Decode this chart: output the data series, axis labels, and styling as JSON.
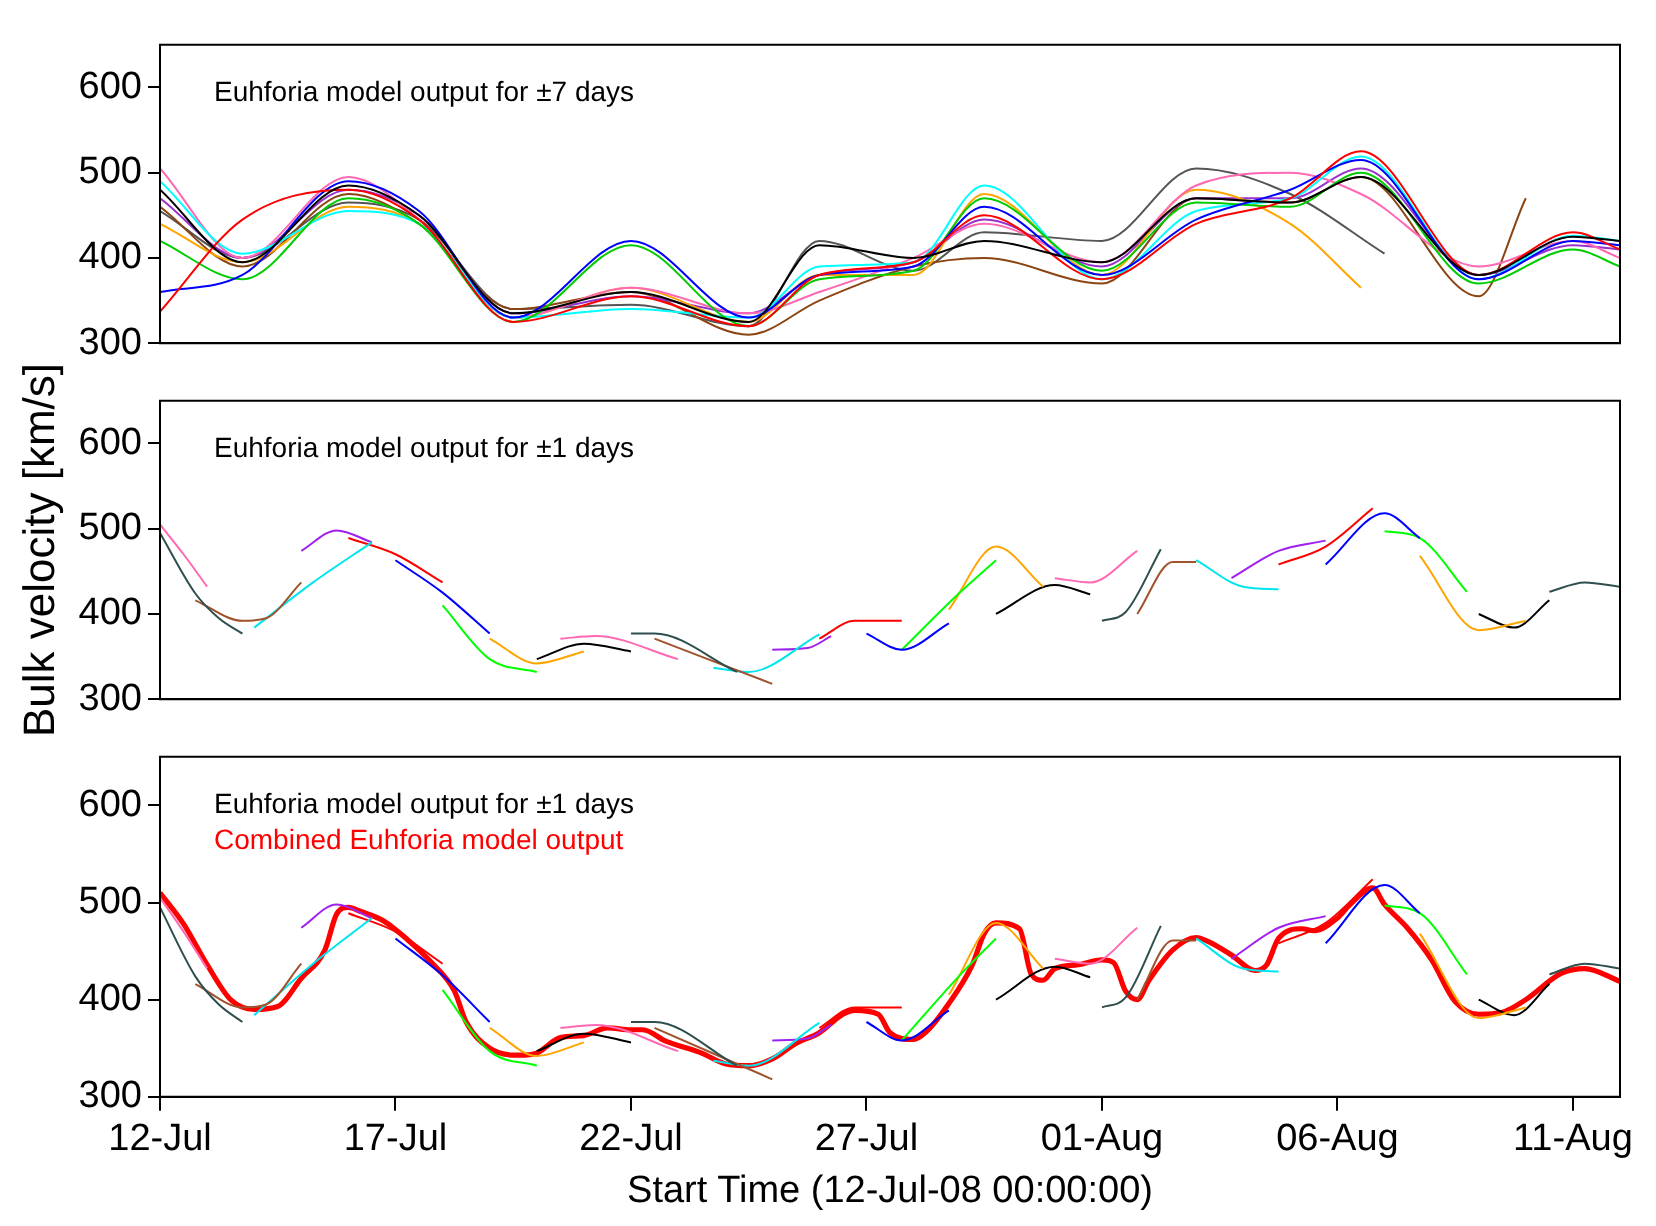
{
  "chart_data": [
    {
      "type": "line",
      "title": "Euhforia model output for ±7 days",
      "xlim": [
        "--07-12",
        "--08-12"
      ],
      "xticks": [
        {
          "value": "--07-12",
          "label": null
        },
        {
          "value": "--07-17",
          "label": null
        },
        {
          "value": "--07-22",
          "label": null
        },
        {
          "value": "--07-27",
          "label": null
        },
        {
          "value": "--08-01",
          "label": null
        },
        {
          "value": "--08-06",
          "label": null
        },
        {
          "value": "--08-11",
          "label": null
        }
      ],
      "ylim": [
        300,
        650
      ],
      "yticks": [
        300,
        400,
        500,
        600
      ],
      "tick_labels": "y",
      "x": [
        "--07-12",
        "--07-13T18:00",
        "--07-16",
        "--07-17T12:00",
        "--07-19T12:00",
        "--07-22",
        "--07-24T12:00",
        "--07-26",
        "--07-28",
        "--07-29T12:00",
        "--08-01",
        "--08-03",
        "--08-05",
        "--08-06T12:00",
        "--08-09",
        "--08-11",
        "--08-12"
      ],
      "series": [
        {
          "color": "#000000",
          "values": [
            480,
            395,
            485,
            450,
            335,
            360,
            325,
            415,
            400,
            420,
            395,
            470,
            465,
            495,
            380,
            425,
            420
          ]
        },
        {
          "color": "#ff0000",
          "values": [
            337,
            445,
            480,
            445,
            325,
            355,
            320,
            380,
            395,
            450,
            375,
            440,
            470,
            525,
            380,
            430,
            410
          ]
        },
        {
          "color": "#0000ff",
          "values": [
            360,
            380,
            490,
            455,
            330,
            420,
            330,
            380,
            390,
            460,
            380,
            445,
            480,
            515,
            375,
            420,
            415
          ]
        },
        {
          "color": "#00cc00",
          "values": [
            420,
            375,
            470,
            440,
            325,
            415,
            320,
            375,
            385,
            470,
            385,
            465,
            460,
            500,
            370,
            410,
            390
          ]
        },
        {
          "color": "#00ffff",
          "values": [
            490,
            405,
            455,
            440,
            330,
            340,
            330,
            390,
            395,
            485,
            375,
            455,
            470,
            519,
            375,
            426,
            420
          ]
        },
        {
          "color": "#ff69b4",
          "values": [
            505,
            400,
            495,
            445,
            330,
            365,
            335,
            360,
            400,
            440,
            395,
            485,
            500,
            475,
            390,
            420,
            400
          ]
        },
        {
          "color": "#ffa500",
          "values": [
            440,
            395,
            460,
            440,
            330,
            365,
            325,
            380,
            380,
            475,
            380,
            480,
            440,
            365,
            null,
            null,
            null
          ]
        },
        {
          "color": "#9932cc",
          "values": [
            470,
            400,
            480,
            450,
            335,
            355,
            335,
            380,
            395,
            445,
            390,
            470,
            470,
            505,
            380,
            415,
            410
          ]
        },
        {
          "color": "#8b4513",
          "x": [
            "--07-12",
            "--07-13T18:00",
            "--07-16",
            "--07-17T12:00",
            "--07-19T12:00",
            "--07-22",
            "--07-24T12:00",
            "--07-26",
            "--07-28",
            "--07-29T12:00",
            "--08-01",
            "--08-03",
            "--08-05",
            "--08-06T12:00",
            "--08-09",
            "--08-10"
          ],
          "values": [
            460,
            390,
            475,
            440,
            340,
            360,
            310,
            350,
            390,
            400,
            370,
            470,
            465,
            495,
            355,
            470
          ]
        },
        {
          "color": "#555555",
          "x": [
            "--07-12",
            "--07-13T18:00",
            "--07-16",
            "--07-17T12:00",
            "--07-19T12:00",
            "--07-22",
            "--07-24T12:00",
            "--07-26",
            "--07-28",
            "--07-29T12:00",
            "--08-01",
            "--08-03",
            "--08-05",
            "--08-07"
          ],
          "values": [
            455,
            400,
            465,
            445,
            340,
            345,
            320,
            420,
            385,
            430,
            420,
            505,
            475,
            405
          ]
        }
      ]
    },
    {
      "type": "line",
      "title": "Euhforia model output for ±1 days",
      "ylabel": "Bulk velocity [km/s]",
      "xlim": [
        "--07-12",
        "--08-12"
      ],
      "xticks": [
        {
          "value": "--07-12",
          "label": null
        },
        {
          "value": "--07-17",
          "label": null
        },
        {
          "value": "--07-22",
          "label": null
        },
        {
          "value": "--07-27",
          "label": null
        },
        {
          "value": "--08-01",
          "label": null
        },
        {
          "value": "--08-06",
          "label": null
        },
        {
          "value": "--08-11",
          "label": null
        }
      ],
      "ylim": [
        300,
        650
      ],
      "yticks": [
        300,
        400,
        500,
        600
      ],
      "tick_labels": "y",
      "series": [
        {
          "color": "#ff69b4",
          "x": [
            "--07-12",
            "--07-12T12:00",
            "--07-13"
          ],
          "values": [
            505,
            470,
            432
          ]
        },
        {
          "color": "#2f4f4f",
          "x": [
            "--07-12",
            "--07-12T18:00",
            "--07-13T06:00",
            "--07-13T18:00"
          ],
          "values": [
            495,
            424,
            395,
            377
          ]
        },
        {
          "color": "#a0522d",
          "x": [
            "--07-12T18:00",
            "--07-13T18:00",
            "--07-14T06:00",
            "--07-15"
          ],
          "values": [
            416,
            392,
            395,
            437
          ]
        },
        {
          "color": "#00e5ee",
          "x": [
            "--07-14",
            "--07-15T06:00",
            "--07-16T12:00"
          ],
          "values": [
            384,
            437,
            484
          ]
        },
        {
          "color": "#a020f0",
          "x": [
            "--07-15",
            "--07-15T18:00",
            "--07-16T12:00"
          ],
          "values": [
            474,
            498,
            484
          ]
        },
        {
          "color": "#ff0000",
          "x": [
            "--07-16",
            "--07-17",
            "--07-18"
          ],
          "values": [
            489,
            470,
            437
          ]
        },
        {
          "color": "#0000ff",
          "x": [
            "--07-17",
            "--07-18",
            "--07-19"
          ],
          "values": [
            463,
            425,
            377
          ]
        },
        {
          "color": "#00ff00",
          "x": [
            "--07-18",
            "--07-19",
            "--07-20"
          ],
          "values": [
            410,
            347,
            332
          ]
        },
        {
          "color": "#ffa500",
          "x": [
            "--07-19",
            "--07-20",
            "--07-21"
          ],
          "values": [
            371,
            342,
            356
          ]
        },
        {
          "color": "#000000",
          "x": [
            "--07-20",
            "--07-21",
            "--07-22"
          ],
          "values": [
            347,
            365,
            356
          ]
        },
        {
          "color": "#ff69b4",
          "x": [
            "--07-20T12:00",
            "--07-21T06:00",
            "--07-23"
          ],
          "values": [
            371,
            374,
            347
          ]
        },
        {
          "color": "#2f4f4f",
          "x": [
            "--07-22",
            "--07-22T12:00",
            "--07-24T06:00"
          ],
          "values": [
            377,
            377,
            332
          ]
        },
        {
          "color": "#a0522d",
          "x": [
            "--07-22T12:00",
            "--07-25"
          ],
          "values": [
            371,
            318
          ]
        },
        {
          "color": "#00e5ee",
          "x": [
            "--07-23T18:00",
            "--07-24T12:00",
            "--07-26"
          ],
          "values": [
            337,
            332,
            376
          ]
        },
        {
          "color": "#a020f0",
          "x": [
            "--07-25",
            "--07-25T18:00",
            "--07-26T06:00"
          ],
          "values": [
            358,
            360,
            374
          ]
        },
        {
          "color": "#ff0000",
          "x": [
            "--07-26",
            "--07-26T18:00",
            "--07-27T18:00"
          ],
          "values": [
            371,
            392,
            392
          ]
        },
        {
          "color": "#0000ff",
          "x": [
            "--07-27",
            "--07-27T18:00",
            "--07-28T18:00"
          ],
          "values": [
            377,
            358,
            389
          ]
        },
        {
          "color": "#00ff00",
          "x": [
            "--07-27T18:00",
            "--07-29",
            "--07-29T18:00"
          ],
          "values": [
            358,
            426,
            463
          ]
        },
        {
          "color": "#ffa500",
          "x": [
            "--07-28T18:00",
            "--07-29T18:00",
            "--07-30T18:00"
          ],
          "values": [
            405,
            479,
            432
          ]
        },
        {
          "color": "#000000",
          "x": [
            "--07-29T18:00",
            "--07-31",
            "--07-31T18:00"
          ],
          "values": [
            400,
            434,
            423
          ]
        },
        {
          "color": "#ff69b4",
          "x": [
            "--07-31",
            "--07-31T18:00",
            "--08-01T18:00"
          ],
          "values": [
            442,
            437,
            474
          ]
        },
        {
          "color": "#2f4f4f",
          "x": [
            "--08-01",
            "--08-01T12:00",
            "--08-02T06:00"
          ],
          "values": [
            392,
            402,
            476
          ]
        },
        {
          "color": "#a0522d",
          "x": [
            "--08-01T18:00",
            "--08-02T12:00",
            "--08-03"
          ],
          "values": [
            400,
            461,
            461
          ]
        },
        {
          "color": "#00e5ee",
          "x": [
            "--08-03",
            "--08-04",
            "--08-04T18:00"
          ],
          "values": [
            463,
            432,
            429
          ]
        },
        {
          "color": "#a020f0",
          "x": [
            "--08-03T18:00",
            "--08-04T18:00",
            "--08-05T18:00"
          ],
          "values": [
            442,
            474,
            486
          ]
        },
        {
          "color": "#ff0000",
          "x": [
            "--08-04T18:00",
            "--08-05T18:00",
            "--08-06T18:00"
          ],
          "values": [
            458,
            479,
            524
          ]
        },
        {
          "color": "#0000ff",
          "x": [
            "--08-05T18:00",
            "--08-07",
            "--08-07T18:00"
          ],
          "values": [
            458,
            518,
            489
          ]
        },
        {
          "color": "#00ff00",
          "x": [
            "--08-07",
            "--08-07T18:00",
            "--08-08T18:00"
          ],
          "values": [
            497,
            489,
            426
          ]
        },
        {
          "color": "#ffa500",
          "x": [
            "--08-07T18:00",
            "--08-09",
            "--08-10"
          ],
          "values": [
            468,
            381,
            392
          ]
        },
        {
          "color": "#000000",
          "x": [
            "--08-09",
            "--08-09T18:00",
            "--08-10T12:00"
          ],
          "values": [
            400,
            384,
            416
          ]
        },
        {
          "color": "#2f4f4f",
          "x": [
            "--08-10T12:00",
            "--08-11T06:00",
            "--08-12"
          ],
          "values": [
            426,
            437,
            432
          ]
        }
      ]
    },
    {
      "type": "line",
      "title": "Euhforia model output for ±1 days",
      "xlabel": "Start Time (12-Jul-08 00:00:00)",
      "legend": "top left",
      "xlim": [
        "--07-12",
        "--08-12"
      ],
      "xticks": [
        {
          "value": "--07-12",
          "label": "12-Jul"
        },
        {
          "value": "--07-17",
          "label": "17-Jul"
        },
        {
          "value": "--07-22",
          "label": "22-Jul"
        },
        {
          "value": "--07-27",
          "label": "27-Jul"
        },
        {
          "value": "--08-01",
          "label": "01-Aug"
        },
        {
          "value": "--08-06",
          "label": "06-Aug"
        },
        {
          "value": "--08-11",
          "label": "11-Aug"
        }
      ],
      "ylim": [
        300,
        650
      ],
      "yticks": [
        300,
        400,
        500,
        600
      ],
      "series": [
        {
          "color": "#ff69b4",
          "x": [
            "--07-12",
            "--07-12T12:00",
            "--07-13"
          ],
          "values": [
            505,
            470,
            432
          ]
        },
        {
          "color": "#2f4f4f",
          "x": [
            "--07-12",
            "--07-12T18:00",
            "--07-13T06:00",
            "--07-13T18:00"
          ],
          "values": [
            495,
            424,
            395,
            377
          ]
        },
        {
          "color": "#a0522d",
          "x": [
            "--07-12T18:00",
            "--07-13T18:00",
            "--07-14T06:00",
            "--07-15"
          ],
          "values": [
            416,
            392,
            395,
            437
          ]
        },
        {
          "color": "#00e5ee",
          "x": [
            "--07-14",
            "--07-15T06:00",
            "--07-16T12:00"
          ],
          "values": [
            384,
            437,
            484
          ]
        },
        {
          "color": "#a020f0",
          "x": [
            "--07-15",
            "--07-15T18:00",
            "--07-16T12:00"
          ],
          "values": [
            474,
            498,
            484
          ]
        },
        {
          "color": "#ff0000",
          "x": [
            "--07-16",
            "--07-17",
            "--07-18"
          ],
          "values": [
            489,
            470,
            437
          ]
        },
        {
          "color": "#0000ff",
          "x": [
            "--07-17",
            "--07-18",
            "--07-19"
          ],
          "values": [
            463,
            425,
            377
          ]
        },
        {
          "color": "#00ff00",
          "x": [
            "--07-18",
            "--07-19",
            "--07-20"
          ],
          "values": [
            410,
            347,
            332
          ]
        },
        {
          "color": "#ffa500",
          "x": [
            "--07-19",
            "--07-20",
            "--07-21"
          ],
          "values": [
            371,
            342,
            356
          ]
        },
        {
          "color": "#000000",
          "x": [
            "--07-20",
            "--07-21",
            "--07-22"
          ],
          "values": [
            347,
            365,
            356
          ]
        },
        {
          "color": "#ff69b4",
          "x": [
            "--07-20T12:00",
            "--07-21T06:00",
            "--07-23"
          ],
          "values": [
            371,
            374,
            347
          ]
        },
        {
          "color": "#2f4f4f",
          "x": [
            "--07-22",
            "--07-22T12:00",
            "--07-24T06:00"
          ],
          "values": [
            377,
            377,
            332
          ]
        },
        {
          "color": "#a0522d",
          "x": [
            "--07-22T12:00",
            "--07-25"
          ],
          "values": [
            371,
            318
          ]
        },
        {
          "color": "#00e5ee",
          "x": [
            "--07-23T18:00",
            "--07-24T12:00",
            "--07-26"
          ],
          "values": [
            337,
            332,
            376
          ]
        },
        {
          "color": "#a020f0",
          "x": [
            "--07-25",
            "--07-25T18:00",
            "--07-26T06:00"
          ],
          "values": [
            358,
            360,
            374
          ]
        },
        {
          "color": "#ff0000",
          "x": [
            "--07-26",
            "--07-26T18:00",
            "--07-27T18:00"
          ],
          "values": [
            371,
            392,
            392
          ]
        },
        {
          "color": "#0000ff",
          "x": [
            "--07-27",
            "--07-27T18:00",
            "--07-28T18:00"
          ],
          "values": [
            377,
            358,
            389
          ]
        },
        {
          "color": "#00ff00",
          "x": [
            "--07-27T18:00",
            "--07-29",
            "--07-29T18:00"
          ],
          "values": [
            358,
            426,
            463
          ]
        },
        {
          "color": "#ffa500",
          "x": [
            "--07-28T18:00",
            "--07-29T18:00",
            "--07-30T18:00"
          ],
          "values": [
            405,
            479,
            432
          ]
        },
        {
          "color": "#000000",
          "x": [
            "--07-29T18:00",
            "--07-31",
            "--07-31T18:00"
          ],
          "values": [
            400,
            434,
            423
          ]
        },
        {
          "color": "#ff69b4",
          "x": [
            "--07-31",
            "--07-31T18:00",
            "--08-01T18:00"
          ],
          "values": [
            442,
            437,
            474
          ]
        },
        {
          "color": "#2f4f4f",
          "x": [
            "--08-01",
            "--08-01T12:00",
            "--08-02T06:00"
          ],
          "values": [
            392,
            402,
            476
          ]
        },
        {
          "color": "#a0522d",
          "x": [
            "--08-01T18:00",
            "--08-02T12:00",
            "--08-03"
          ],
          "values": [
            400,
            461,
            461
          ]
        },
        {
          "color": "#00e5ee",
          "x": [
            "--08-03",
            "--08-04",
            "--08-04T18:00"
          ],
          "values": [
            463,
            432,
            429
          ]
        },
        {
          "color": "#a020f0",
          "x": [
            "--08-03T18:00",
            "--08-04T18:00",
            "--08-05T18:00"
          ],
          "values": [
            442,
            474,
            486
          ]
        },
        {
          "color": "#ff0000",
          "x": [
            "--08-04T18:00",
            "--08-05T18:00",
            "--08-06T18:00"
          ],
          "values": [
            458,
            479,
            524
          ]
        },
        {
          "color": "#0000ff",
          "x": [
            "--08-05T18:00",
            "--08-07",
            "--08-07T18:00"
          ],
          "values": [
            458,
            518,
            489
          ]
        },
        {
          "color": "#00ff00",
          "x": [
            "--08-07",
            "--08-07T18:00",
            "--08-08T18:00"
          ],
          "values": [
            497,
            489,
            426
          ]
        },
        {
          "color": "#ffa500",
          "x": [
            "--08-07T18:00",
            "--08-09",
            "--08-10"
          ],
          "values": [
            468,
            381,
            392
          ]
        },
        {
          "color": "#000000",
          "x": [
            "--08-09",
            "--08-09T18:00",
            "--08-10T12:00"
          ],
          "values": [
            400,
            384,
            416
          ]
        },
        {
          "color": "#2f4f4f",
          "x": [
            "--08-10T12:00",
            "--08-11T06:00",
            "--08-12"
          ],
          "values": [
            426,
            437,
            432
          ]
        },
        {
          "name": "Combined Euhforia model output",
          "color": "#ff0000",
          "x": [
            "--07-12",
            "--07-12T12:00",
            "--07-13",
            "--07-13T12:00",
            "--07-14",
            "--07-14T12:00",
            "--07-15",
            "--07-15T12:00",
            "--07-15T18:00",
            "--07-16",
            "--07-16T06:00",
            "--07-16T18:00",
            "--07-17T06:00",
            "--07-17T18:00",
            "--07-18T06:00",
            "--07-18T12:00",
            "--07-19",
            "--07-19T12:00",
            "--07-19T18:00",
            "--07-20",
            "--07-20T12:00",
            "--07-21",
            "--07-21T12:00",
            "--07-22",
            "--07-22T06:00",
            "--07-22T18:00",
            "--07-23T12:00",
            "--07-24",
            "--07-24T12:00",
            "--07-25",
            "--07-25T12:00",
            "--07-26",
            "--07-26T12:00",
            "--07-26T18:00",
            "--07-27T06:00",
            "--07-27T12:00",
            "--07-28",
            "--07-28T06:00",
            "--07-28T18:00",
            "--07-29T06:00",
            "--07-29T12:00",
            "--07-29T18:00",
            "--07-30T06:00",
            "--07-30T12:00",
            "--07-30T18:00",
            "--07-31",
            "--07-31T12:00",
            "--08-01",
            "--08-01T06:00",
            "--08-01T12:00",
            "--08-01T18:00",
            "--08-02",
            "--08-02T12:00",
            "--08-03",
            "--08-03T06:00",
            "--08-03T18:00",
            "--08-04T06:00",
            "--08-04T12:00",
            "--08-04T18:00",
            "--08-05T06:00",
            "--08-05T12:00",
            "--08-06",
            "--08-06T06:00",
            "--08-06T18:00",
            "--08-07",
            "--08-07T12:00",
            "--08-08",
            "--08-08T12:00",
            "--08-09",
            "--08-09T12:00",
            "--08-10",
            "--08-10T18:00",
            "--08-11T06:00",
            "--08-12"
          ],
          "values": [
            510,
            478,
            436,
            400,
            390,
            393,
            422,
            451,
            488,
            495,
            491,
            481,
            462,
            439,
            409,
            377,
            350,
            343,
            343,
            345,
            361,
            363,
            371,
            369,
            369,
            357,
            345,
            334,
            332,
            339,
            355,
            366,
            385,
            389,
            385,
            366,
            359,
            366,
            396,
            436,
            468,
            479,
            473,
            426,
            420,
            432,
            436,
            441,
            438,
            409,
            400,
            420,
            451,
            464,
            460,
            446,
            430,
            436,
            463,
            473,
            471,
            484,
            497,
            515,
            498,
            473,
            441,
            398,
            385,
            387,
            400,
            427,
            432,
            419
          ]
        }
      ]
    }
  ]
}
